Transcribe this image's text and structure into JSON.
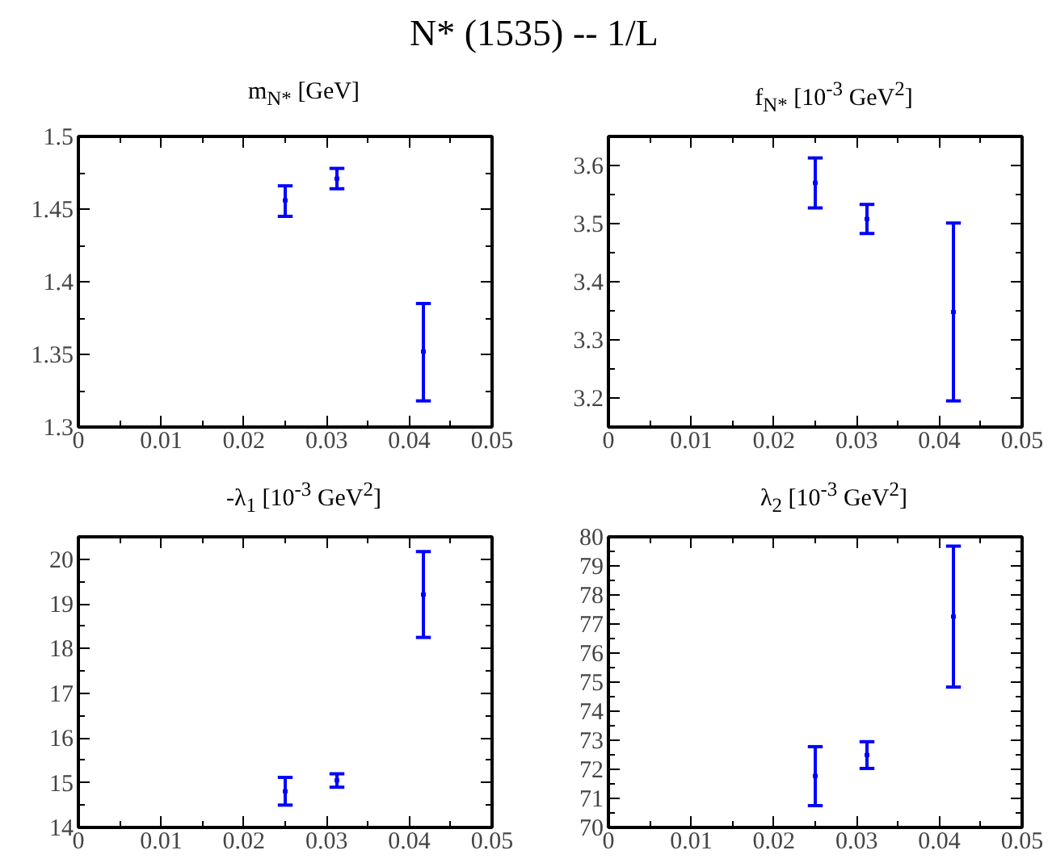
{
  "chart_data": [
    {
      "type": "scatter",
      "title": "m$_{N*}$ [GeV]",
      "annotations": [
        "N* (1535) -- 1/L"
      ],
      "grid": false,
      "x": [
        0.025,
        0.03125,
        0.0417
      ],
      "xlim": [
        0,
        0.05
      ],
      "xticks": [
        0,
        0.01,
        0.02,
        0.03,
        0.04,
        0.05
      ],
      "ylim": [
        1.3,
        1.5
      ],
      "yticks": [
        1.3,
        1.35,
        1.4,
        1.45,
        1.5
      ],
      "series": [
        {
          "color": "#0000ff",
          "values": [
            1.456,
            1.471,
            1.352
          ],
          "errors": [
            [
              1.445,
              1.466
            ],
            [
              1.464,
              1.478
            ],
            [
              1.318,
              1.385
            ]
          ]
        }
      ]
    },
    {
      "type": "scatter",
      "title": "f$_{N*}$ [10$^{-3}$ GeV$^{2}$]",
      "grid": false,
      "x": [
        0.025,
        0.03125,
        0.0417
      ],
      "xlim": [
        0,
        0.05
      ],
      "xticks": [
        0,
        0.01,
        0.02,
        0.03,
        0.04,
        0.05
      ],
      "ylim": [
        3.15,
        3.65
      ],
      "yticks": [
        3.2,
        3.3,
        3.4,
        3.5,
        3.6
      ],
      "series": [
        {
          "color": "#0000ff",
          "values": [
            3.57,
            3.508,
            3.348
          ],
          "errors": [
            [
              3.527,
              3.613
            ],
            [
              3.483,
              3.533
            ],
            [
              3.195,
              3.501
            ]
          ]
        }
      ]
    },
    {
      "type": "scatter",
      "title": "-λ$_{1}$ [10$^{-3}$ GeV$^{2}$]",
      "grid": false,
      "x": [
        0.025,
        0.03125,
        0.0417
      ],
      "xlim": [
        0,
        0.05
      ],
      "xticks": [
        0,
        0.01,
        0.02,
        0.03,
        0.04,
        0.05
      ],
      "ylim": [
        14,
        20.5
      ],
      "yticks": [
        14,
        15,
        16,
        17,
        18,
        19,
        20
      ],
      "series": [
        {
          "color": "#0000ff",
          "values": [
            14.81,
            15.05,
            19.21
          ],
          "errors": [
            [
              14.5,
              15.12
            ],
            [
              14.9,
              15.2
            ],
            [
              18.25,
              20.17
            ]
          ]
        }
      ]
    },
    {
      "type": "scatter",
      "title": "λ$_{2}$ [10$^{-3}$ GeV$^{2}$]",
      "grid": false,
      "x": [
        0.025,
        0.03125,
        0.0417
      ],
      "xlim": [
        0,
        0.05
      ],
      "xticks": [
        0,
        0.01,
        0.02,
        0.03,
        0.04,
        0.05
      ],
      "ylim": [
        70,
        80
      ],
      "yticks": [
        70,
        71,
        72,
        73,
        74,
        75,
        76,
        77,
        78,
        79,
        80
      ],
      "series": [
        {
          "color": "#0000ff",
          "values": [
            71.77,
            72.49,
            77.26
          ],
          "errors": [
            [
              70.75,
              72.78
            ],
            [
              72.03,
              72.95
            ],
            [
              74.83,
              79.68
            ]
          ]
        }
      ]
    }
  ]
}
